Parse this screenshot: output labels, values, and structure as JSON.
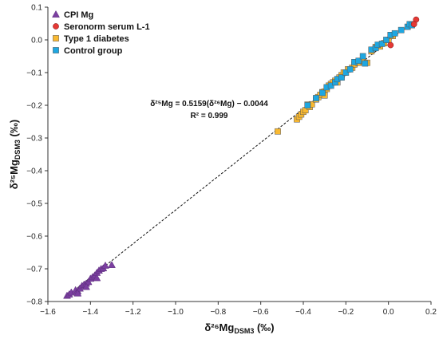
{
  "chart_data": {
    "type": "scatter",
    "title": "",
    "xlabel": "δ²⁶Mg",
    "xlabel_sub": "DSM3",
    "xlabel_unit": " (‰)",
    "ylabel": "δ²⁵Mg",
    "ylabel_sub": "DSM3",
    "ylabel_unit": " (‰)",
    "xlim": [
      -1.6,
      0.2
    ],
    "ylim": [
      -0.8,
      0.1
    ],
    "x_ticks": [
      -1.6,
      -1.4,
      -1.2,
      -1.0,
      -0.8,
      -0.6,
      -0.4,
      -0.2,
      0.0,
      0.2
    ],
    "x_tick_labels": [
      "−1.6",
      "−1.4",
      "−1.2",
      "−1.0",
      "−0.8",
      "−0.6",
      "−0.4",
      "−0.2",
      "0.0",
      "0.2"
    ],
    "y_ticks": [
      -0.8,
      -0.7,
      -0.6,
      -0.5,
      -0.4,
      -0.3,
      -0.2,
      -0.1,
      0.0,
      0.1
    ],
    "y_tick_labels": [
      "−0.8",
      "−0.7",
      "−0.6",
      "−0.5",
      "−0.4",
      "−0.3",
      "−0.2",
      "−0.1",
      "0.0",
      "0.1"
    ],
    "grid": false,
    "legend_position": "top-left",
    "trendline": {
      "slope": 0.5159,
      "intercept": -0.0044,
      "x_range": [
        -1.52,
        0.13
      ],
      "equation_label": "δ²⁵Mg = 0.5159(δ²⁶Mg) − 0.0044",
      "r2_label": "R² = 0.999"
    },
    "series": [
      {
        "name": "CPI Mg",
        "marker": "triangle",
        "color": "#7b3fa0",
        "points": [
          [
            -1.51,
            -0.782
          ],
          [
            -1.5,
            -0.778
          ],
          [
            -1.49,
            -0.772
          ],
          [
            -1.47,
            -0.765
          ],
          [
            -1.46,
            -0.768
          ],
          [
            -1.45,
            -0.76
          ],
          [
            -1.44,
            -0.752
          ],
          [
            -1.43,
            -0.748
          ],
          [
            -1.42,
            -0.745
          ],
          [
            -1.41,
            -0.74
          ],
          [
            -1.4,
            -0.73
          ],
          [
            -1.39,
            -0.725
          ],
          [
            -1.38,
            -0.72
          ],
          [
            -1.37,
            -0.712
          ],
          [
            -1.37,
            -0.728
          ],
          [
            -1.36,
            -0.705
          ],
          [
            -1.35,
            -0.7
          ],
          [
            -1.34,
            -0.698
          ],
          [
            -1.33,
            -0.69
          ],
          [
            -1.3,
            -0.688
          ],
          [
            -1.46,
            -0.775
          ],
          [
            -1.42,
            -0.755
          ]
        ]
      },
      {
        "name": "Seronorm serum L-1",
        "marker": "circle",
        "color": "#e53935",
        "points": [
          [
            0.13,
            0.062
          ],
          [
            0.01,
            -0.016
          ],
          [
            0.12,
            0.048
          ]
        ]
      },
      {
        "name": "Type 1 diabetes",
        "marker": "square",
        "color": "#f9b931",
        "points": [
          [
            -0.52,
            -0.28
          ],
          [
            -0.43,
            -0.243
          ],
          [
            -0.42,
            -0.235
          ],
          [
            -0.41,
            -0.228
          ],
          [
            -0.4,
            -0.22
          ],
          [
            -0.39,
            -0.215
          ],
          [
            -0.37,
            -0.205
          ],
          [
            -0.36,
            -0.197
          ],
          [
            -0.34,
            -0.182
          ],
          [
            -0.33,
            -0.175
          ],
          [
            -0.32,
            -0.168
          ],
          [
            -0.31,
            -0.16
          ],
          [
            -0.3,
            -0.158
          ],
          [
            -0.29,
            -0.15
          ],
          [
            -0.28,
            -0.14
          ],
          [
            -0.27,
            -0.135
          ],
          [
            -0.26,
            -0.13
          ],
          [
            -0.25,
            -0.125
          ],
          [
            -0.23,
            -0.115
          ],
          [
            -0.22,
            -0.108
          ],
          [
            -0.21,
            -0.1
          ],
          [
            -0.19,
            -0.09
          ],
          [
            -0.17,
            -0.085
          ],
          [
            -0.16,
            -0.075
          ],
          [
            -0.14,
            -0.07
          ],
          [
            -0.12,
            -0.065
          ],
          [
            -0.1,
            -0.07
          ],
          [
            -0.08,
            -0.035
          ],
          [
            -0.06,
            -0.022
          ],
          [
            -0.04,
            -0.02
          ],
          [
            -0.02,
            -0.01
          ],
          [
            0.0,
            0.0
          ],
          [
            0.02,
            0.012
          ],
          [
            -0.38,
            -0.198
          ],
          [
            -0.3,
            -0.17
          ],
          [
            -0.24,
            -0.13
          ]
        ]
      },
      {
        "name": "Control group",
        "marker": "square",
        "color": "#1ea7e1",
        "points": [
          [
            -0.38,
            -0.2
          ],
          [
            -0.34,
            -0.178
          ],
          [
            -0.31,
            -0.162
          ],
          [
            -0.29,
            -0.145
          ],
          [
            -0.27,
            -0.14
          ],
          [
            -0.25,
            -0.13
          ],
          [
            -0.24,
            -0.12
          ],
          [
            -0.22,
            -0.115
          ],
          [
            -0.2,
            -0.1
          ],
          [
            -0.18,
            -0.09
          ],
          [
            -0.16,
            -0.068
          ],
          [
            -0.14,
            -0.064
          ],
          [
            -0.12,
            -0.05
          ],
          [
            -0.11,
            -0.072
          ],
          [
            -0.08,
            -0.03
          ],
          [
            -0.06,
            -0.025
          ],
          [
            -0.05,
            -0.015
          ],
          [
            -0.03,
            -0.012
          ],
          [
            -0.01,
            0.0
          ],
          [
            0.01,
            0.015
          ],
          [
            0.03,
            0.02
          ],
          [
            0.06,
            0.03
          ],
          [
            0.09,
            0.04
          ],
          [
            0.1,
            0.048
          ],
          [
            0.11,
            0.045
          ]
        ]
      }
    ]
  }
}
